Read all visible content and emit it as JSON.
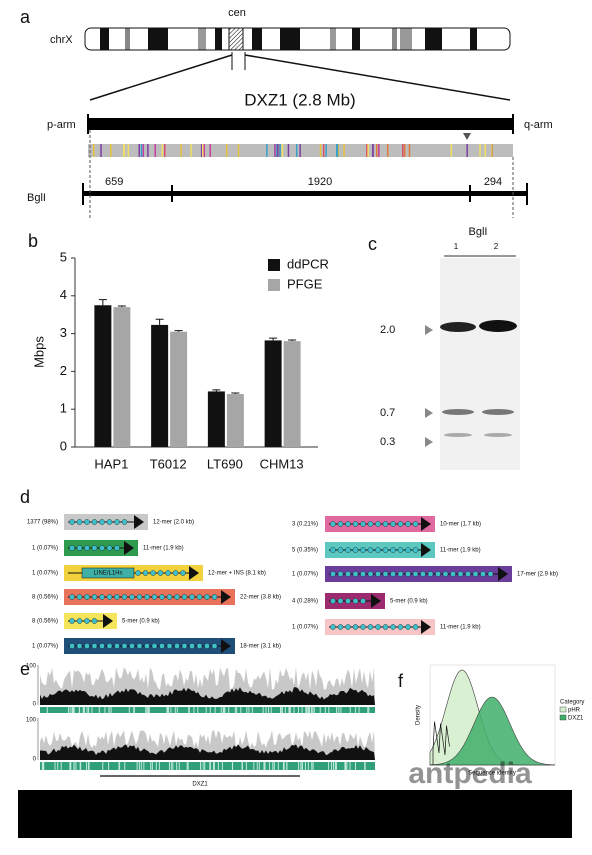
{
  "panel_labels": [
    "a",
    "b",
    "c",
    "d",
    "e",
    "f"
  ],
  "a": {
    "chromosome": "chrX",
    "centromere": "cen",
    "title": "DXZ1 (2.8 Mb)",
    "p_arm": "p-arm",
    "q_arm": "q-arm",
    "enzyme": "BglI",
    "fragments": [
      "659",
      "1920",
      "294"
    ]
  },
  "chart_data": {
    "type": "bar",
    "ylabel": "Mbps",
    "categories": [
      "HAP1",
      "T6012",
      "LT690",
      "CHM13"
    ],
    "series": [
      {
        "name": "ddPCR",
        "color": "#111111",
        "values": [
          3.75,
          3.23,
          1.47,
          2.82
        ],
        "errors": [
          0.15,
          0.15,
          0.04,
          0.06
        ]
      },
      {
        "name": "PFGE",
        "color": "#a6a6a6",
        "values": [
          3.7,
          3.05,
          1.4,
          2.8
        ],
        "errors": [
          0.03,
          0.03,
          0.03,
          0.03
        ]
      }
    ],
    "ylim": [
      0,
      5
    ],
    "yticks": [
      0,
      1,
      2,
      3,
      4,
      5
    ],
    "legend": "top-right"
  },
  "c": {
    "enzyme": "BglI",
    "lanes": [
      "1",
      "2"
    ],
    "markers": [
      "2.0",
      "0.7",
      "0.3"
    ]
  },
  "d": {
    "left": [
      {
        "count": "1377 (98%)",
        "label": "12-mer (2.0 kb)",
        "color": "#c8c8c8"
      },
      {
        "count": "1 (0.07%)",
        "label": "11-mer (1.9 kb)",
        "color": "#2e9a4e"
      },
      {
        "count": "1 (0.07%)",
        "label": "12-mer + INS (8.1 kb)",
        "color": "#f2d23c",
        "insert": "LINE/L1Hs"
      },
      {
        "count": "8 (0.56%)",
        "label": "22-mer (3.8 kb)",
        "color": "#e8735a"
      },
      {
        "count": "8 (0.56%)",
        "label": "5-mer (0.9 kb)",
        "color": "#f4e55a"
      },
      {
        "count": "1 (0.07%)",
        "label": "18-mer (3.1 kb)",
        "color": "#1f4e79"
      }
    ],
    "right": [
      {
        "count": "3 (0.21%)",
        "label": "10-mer (1.7 kb)",
        "color": "#e06aa0"
      },
      {
        "count": "5 (0.35%)",
        "label": "11-mer (1.9 kb)",
        "color": "#5cc8c0"
      },
      {
        "count": "1 (0.07%)",
        "label": "17-mer (2.9 kb)",
        "color": "#6a3d9a"
      },
      {
        "count": "4 (0.28%)",
        "label": "5-mer (0.9 kb)",
        "color": "#9c2a6e"
      },
      {
        "count": "1 (0.07%)",
        "label": "11-mer (1.9 kb)",
        "color": "#f6c6c6"
      }
    ]
  },
  "e": {
    "ticks": [
      100,
      0
    ],
    "region": "DXZ1"
  },
  "f": {
    "ylabel": "Density",
    "xlabel": "Sequence identity",
    "legend_title": "Category",
    "legend": [
      "pHR",
      "DXZ1"
    ]
  },
  "watermark": "antpedia"
}
